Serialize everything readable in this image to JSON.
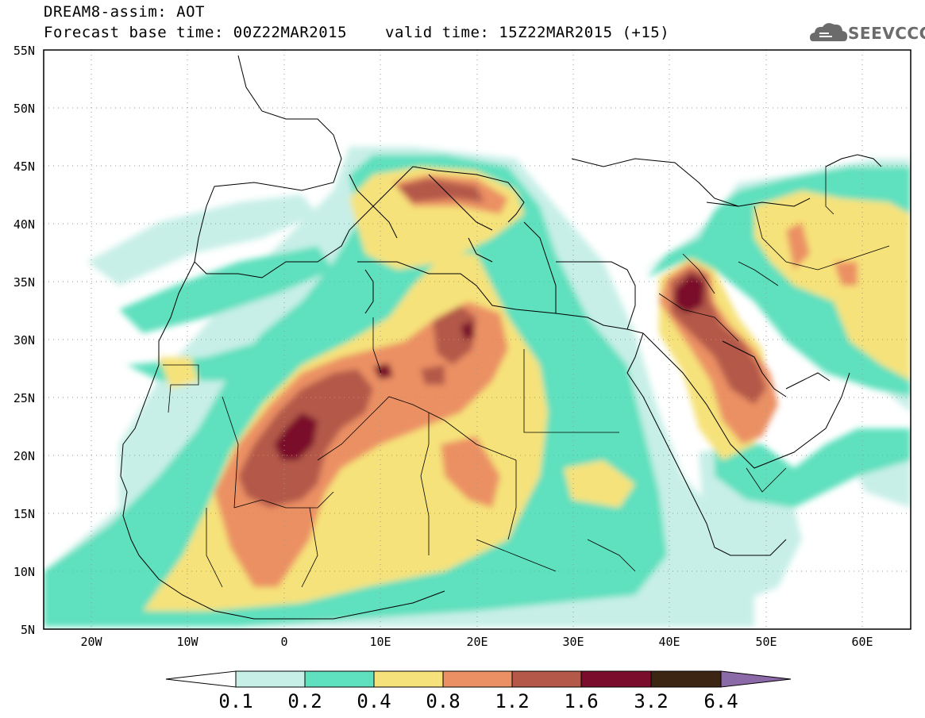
{
  "header": {
    "title_line1": "DREAM8-assim: AOT",
    "title_line2": "Forecast base time: 00Z22MAR2015",
    "valid_time": "valid time: 15Z22MAR2015 (+15)",
    "logo_text": "SEEVCCC",
    "logo_icon": "cloud-icon"
  },
  "map": {
    "lat_labels": [
      "55N",
      "50N",
      "45N",
      "40N",
      "35N",
      "30N",
      "25N",
      "20N",
      "15N",
      "10N",
      "5N"
    ],
    "lon_labels": [
      "20W",
      "10W",
      "0",
      "10E",
      "20E",
      "30E",
      "40E",
      "50E",
      "60E"
    ],
    "lat_range": [
      5,
      55
    ],
    "lon_range": [
      -25,
      65
    ],
    "grid": "dotted"
  },
  "colorbar": {
    "labels": [
      "0.1",
      "0.2",
      "0.4",
      "0.8",
      "1.2",
      "1.6",
      "3.2",
      "6.4"
    ],
    "colors": {
      "below_0.1": "#ffffff",
      "0.1-0.2": "#c7efe7",
      "0.2-0.4": "#5fe0be",
      "0.4-0.8": "#f6e27a",
      "0.8-1.2": "#eb9064",
      "1.2-1.6": "#b4594a",
      "1.6-3.2": "#7a0d2b",
      "3.2-6.4": "#3d2514",
      "above_6.4": "#8c6aa8"
    }
  }
}
